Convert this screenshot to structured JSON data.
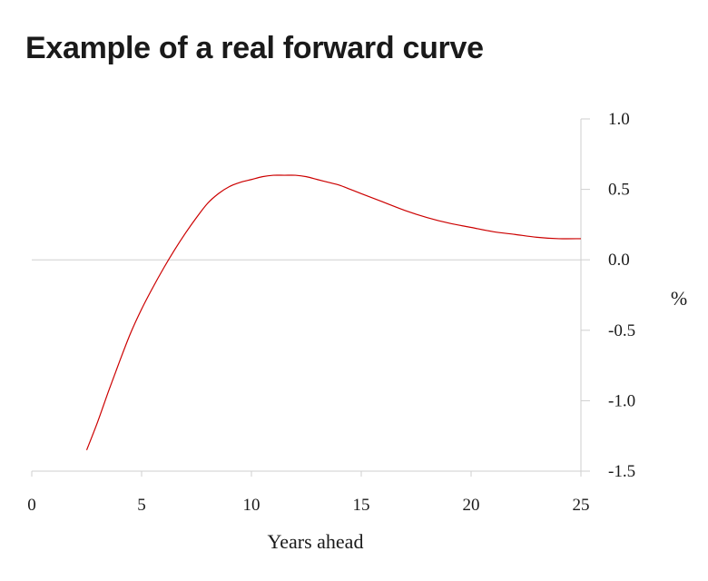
{
  "chart_data": {
    "type": "line",
    "title": "Example of a real forward curve",
    "xlabel": "Years ahead",
    "ylabel": "%",
    "xlim": [
      0,
      25
    ],
    "ylim": [
      -1.5,
      1.0
    ],
    "x_ticks": [
      0,
      5,
      10,
      15,
      20,
      25
    ],
    "y_ticks": [
      1.0,
      0.5,
      0.0,
      -0.5,
      -1.0,
      -1.5
    ],
    "y_tick_labels": [
      "1.0",
      "0.5",
      "0.0",
      "-0.5",
      "-1.0",
      "-1.5"
    ],
    "y_axis_side": "right",
    "zero_line": true,
    "series": [
      {
        "color": "#cc0000",
        "x": [
          2.5,
          3,
          3.5,
          4,
          4.5,
          5,
          5.5,
          6,
          6.5,
          7,
          7.5,
          8,
          8.5,
          9,
          9.5,
          10,
          10.5,
          11,
          11.5,
          12,
          12.5,
          13,
          13.5,
          14,
          14.5,
          15,
          16,
          17,
          18,
          19,
          20,
          21,
          22,
          23,
          24,
          25
        ],
        "y": [
          -1.35,
          -1.15,
          -0.93,
          -0.72,
          -0.52,
          -0.35,
          -0.2,
          -0.06,
          0.07,
          0.19,
          0.3,
          0.4,
          0.47,
          0.52,
          0.55,
          0.57,
          0.59,
          0.6,
          0.6,
          0.6,
          0.59,
          0.57,
          0.55,
          0.53,
          0.5,
          0.47,
          0.41,
          0.35,
          0.3,
          0.26,
          0.23,
          0.2,
          0.18,
          0.16,
          0.15,
          0.15
        ]
      }
    ]
  }
}
